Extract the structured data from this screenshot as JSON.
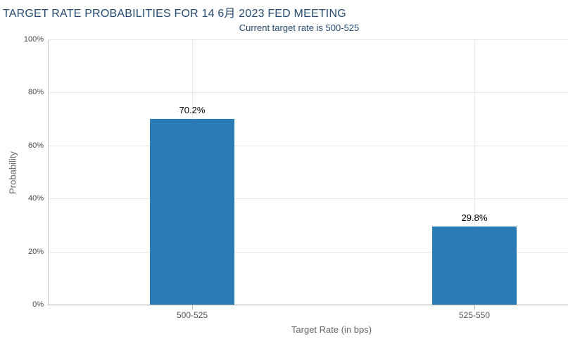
{
  "chart_data": {
    "type": "bar",
    "title": "TARGET RATE PROBABILITIES FOR 14 6月 2023 FED MEETING",
    "subtitle": "Current target rate is 500-525",
    "categories": [
      "500-525",
      "525-550"
    ],
    "values": [
      70.2,
      29.8
    ],
    "value_labels": [
      "70.2%",
      "29.8%"
    ],
    "xlabel": "Target Rate (in bps)",
    "ylabel": "Probability",
    "ylim": [
      0,
      100
    ],
    "yticks": [
      0,
      20,
      40,
      60,
      80,
      100
    ],
    "ytick_labels": [
      "0%",
      "20%",
      "40%",
      "60%",
      "80%",
      "100%"
    ],
    "grid": true,
    "legend": false,
    "bar_color": "#2b7cb5"
  },
  "colors": {
    "bar": "#2b7cb5",
    "title_text": "#254b73",
    "axis_title_text": "#666666",
    "tick_label_text": "#4a4a4a",
    "category_label_text": "#555555",
    "value_label_text": "#000000",
    "gridline": "#e6e6e6",
    "y_axis_line": "#c6c6c6",
    "x_axis_line": "#aeaeae"
  }
}
